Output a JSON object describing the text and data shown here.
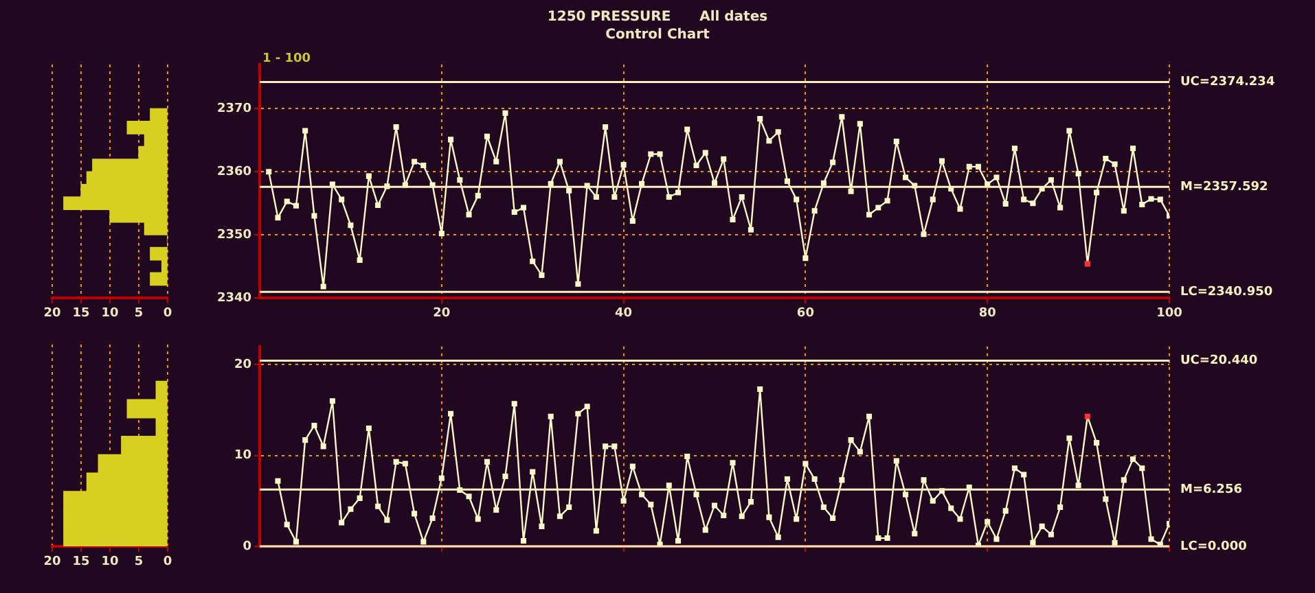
{
  "chart_data": [
    {
      "type": "histogram",
      "orientation": "horizontal",
      "bins": [
        2342,
        2344,
        2346,
        2348,
        2350,
        2352,
        2354,
        2356,
        2358,
        2360,
        2362,
        2364,
        2366,
        2368,
        2370
      ],
      "values": [
        3,
        1,
        3,
        0,
        4,
        10,
        18,
        15,
        14,
        13,
        5,
        4,
        7,
        3
      ],
      "color": "#d8d020",
      "xlim": [
        20,
        0
      ],
      "xticks": [
        20,
        15,
        10,
        5,
        0
      ],
      "ylim": [
        2340,
        2377
      ],
      "grid": "x",
      "tick_labels": "x"
    },
    {
      "type": "line",
      "title": "1250 PRESSURE      All dates",
      "subtitle": "Control Chart",
      "annotations": [
        "1 - 100"
      ],
      "xlim": [
        0,
        100
      ],
      "xticks": [
        20,
        40,
        60,
        80,
        100
      ],
      "ylim": [
        2340,
        2377
      ],
      "yticks": [
        2340,
        2350,
        2360,
        2370
      ],
      "grid": true,
      "marker": "square",
      "x": [
        1,
        2,
        3,
        4,
        5,
        6,
        7,
        8,
        9,
        10,
        11,
        12,
        13,
        14,
        15,
        16,
        17,
        18,
        19,
        20,
        21,
        22,
        23,
        24,
        25,
        26,
        27,
        28,
        29,
        30,
        31,
        32,
        33,
        34,
        35,
        36,
        37,
        38,
        39,
        40,
        41,
        42,
        43,
        44,
        45,
        46,
        47,
        48,
        49,
        50,
        51,
        52,
        53,
        54,
        55,
        56,
        57,
        58,
        59,
        60,
        61,
        62,
        63,
        64,
        65,
        66,
        67,
        68,
        69,
        70,
        71,
        72,
        73,
        74,
        75,
        76,
        77,
        78,
        79,
        80,
        81,
        82,
        83,
        84,
        85,
        86,
        87,
        88,
        89,
        90,
        91,
        92,
        93,
        94,
        95,
        96,
        97,
        98,
        99,
        100
      ],
      "series": [
        {
          "color": "#fff8c8",
          "colors": [
            "#fff8c8",
            "#fff8c8",
            "#fff8c8",
            "#fff8c8",
            "#fff8c8",
            "#fff8c8",
            "#fff8c8",
            "#fff8c8",
            "#fff8c8",
            "#fff8c8",
            "#fff8c8",
            "#fff8c8",
            "#fff8c8",
            "#fff8c8",
            "#fff8c8",
            "#fff8c8",
            "#fff8c8",
            "#fff8c8",
            "#fff8c8",
            "#fff8c8",
            "#fff8c8",
            "#fff8c8",
            "#fff8c8",
            "#fff8c8",
            "#fff8c8",
            "#fff8c8",
            "#fff8c8",
            "#fff8c8",
            "#fff8c8",
            "#fff8c8",
            "#fff8c8",
            "#fff8c8",
            "#fff8c8",
            "#fff8c8",
            "#fff8c8",
            "#fff8c8",
            "#fff8c8",
            "#fff8c8",
            "#fff8c8",
            "#fff8c8",
            "#fff8c8",
            "#fff8c8",
            "#fff8c8",
            "#fff8c8",
            "#fff8c8",
            "#fff8c8",
            "#fff8c8",
            "#fff8c8",
            "#fff8c8",
            "#fff8c8",
            "#fff8c8",
            "#fff8c8",
            "#fff8c8",
            "#fff8c8",
            "#fff8c8",
            "#fff8c8",
            "#fff8c8",
            "#fff8c8",
            "#fff8c8",
            "#fff8c8",
            "#fff8c8",
            "#fff8c8",
            "#fff8c8",
            "#fff8c8",
            "#fff8c8",
            "#fff8c8",
            "#fff8c8",
            "#fff8c8",
            "#fff8c8",
            "#fff8c8",
            "#fff8c8",
            "#fff8c8",
            "#fff8c8",
            "#fff8c8",
            "#fff8c8",
            "#fff8c8",
            "#fff8c8",
            "#fff8c8",
            "#fff8c8",
            "#fff8c8",
            "#fff8c8",
            "#fff8c8",
            "#fff8c8",
            "#fff8c8",
            "#fff8c8",
            "#fff8c8",
            "#fff8c8",
            "#fff8c8",
            "#fff8c8",
            "#fff8c8",
            "#ff3030",
            "#fff8c8",
            "#fff8c8",
            "#fff8c8",
            "#fff8c8",
            "#fff8c8",
            "#fff8c8",
            "#fff8c8",
            "#fff8c8",
            "#fff8c8"
          ],
          "values": [
            2360.0,
            2352.7,
            2355.3,
            2354.6,
            2366.5,
            2353.0,
            2341.8,
            2358.0,
            2355.6,
            2351.5,
            2346.0,
            2359.3,
            2354.7,
            2357.7,
            2367.1,
            2357.9,
            2361.6,
            2361.0,
            2357.9,
            2350.2,
            2365.1,
            2358.7,
            2353.2,
            2356.2,
            2365.6,
            2361.6,
            2369.3,
            2353.6,
            2354.3,
            2345.8,
            2343.6,
            2358.1,
            2361.6,
            2357.0,
            2342.2,
            2357.8,
            2356.0,
            2367.1,
            2356.0,
            2361.1,
            2352.2,
            2358.1,
            2362.8,
            2362.8,
            2356.0,
            2356.7,
            2366.7,
            2361.0,
            2363.0,
            2358.2,
            2362.0,
            2352.4,
            2356.0,
            2350.8,
            2368.4,
            2364.9,
            2366.3,
            2358.5,
            2355.6,
            2346.3,
            2353.8,
            2358.2,
            2361.5,
            2368.7,
            2356.9,
            2367.6,
            2353.2,
            2354.3,
            2355.4,
            2364.8,
            2359.1,
            2357.8,
            2350.1,
            2355.6,
            2361.7,
            2357.3,
            2354.1,
            2360.8,
            2360.8,
            2358.0,
            2359.1,
            2354.9,
            2363.7,
            2355.6,
            2355.0,
            2357.3,
            2358.7,
            2354.3,
            2366.5,
            2359.7,
            2345.4,
            2356.7,
            2362.1,
            2361.2,
            2353.8,
            2363.7,
            2354.8,
            2355.7,
            2355.6,
            2353.0
          ]
        }
      ],
      "ref_lines": [
        {
          "axis": "y",
          "value": 2374.234,
          "label": "UC=2374.234",
          "color": "#fff0c0"
        },
        {
          "axis": "y",
          "value": 2357.592,
          "label": "M=2357.592",
          "color": "#fff0c0"
        },
        {
          "axis": "y",
          "value": 2340.95,
          "label": "LC=2340.950",
          "color": "#fff0c0"
        }
      ]
    },
    {
      "type": "histogram",
      "orientation": "horizontal",
      "bins": [
        0,
        2,
        4,
        6,
        8,
        10,
        12,
        14,
        16,
        18
      ],
      "values": [
        18,
        18,
        18,
        14,
        12,
        8,
        2,
        7,
        2
      ],
      "color": "#d8d020",
      "xlim": [
        20,
        0
      ],
      "xticks": [
        20,
        15,
        10,
        5,
        0
      ],
      "ylim": [
        0,
        22
      ],
      "grid": "x",
      "tick_labels": "x"
    },
    {
      "type": "line",
      "xlim": [
        0,
        100
      ],
      "xticks": [
        20,
        40,
        60,
        80,
        100
      ],
      "ylim": [
        0,
        22
      ],
      "yticks": [
        0,
        10,
        20
      ],
      "grid": true,
      "marker": "square",
      "tick_labels": "y",
      "x": [
        2,
        3,
        4,
        5,
        6,
        7,
        8,
        9,
        10,
        11,
        12,
        13,
        14,
        15,
        16,
        17,
        18,
        19,
        20,
        21,
        22,
        23,
        24,
        25,
        26,
        27,
        28,
        29,
        30,
        31,
        32,
        33,
        34,
        35,
        36,
        37,
        38,
        39,
        40,
        41,
        42,
        43,
        44,
        45,
        46,
        47,
        48,
        49,
        50,
        51,
        52,
        53,
        54,
        55,
        56,
        57,
        58,
        59,
        60,
        61,
        62,
        63,
        64,
        65,
        66,
        67,
        68,
        69,
        70,
        71,
        72,
        73,
        74,
        75,
        76,
        77,
        78,
        79,
        80,
        81,
        82,
        83,
        84,
        85,
        86,
        87,
        88,
        89,
        90,
        91,
        92,
        93,
        94,
        95,
        96,
        97,
        98,
        99,
        100
      ],
      "series": [
        {
          "color": "#fff8c8",
          "colors": [
            "#fff8c8",
            "#fff8c8",
            "#fff8c8",
            "#fff8c8",
            "#fff8c8",
            "#fff8c8",
            "#fff8c8",
            "#fff8c8",
            "#fff8c8",
            "#fff8c8",
            "#fff8c8",
            "#fff8c8",
            "#fff8c8",
            "#fff8c8",
            "#fff8c8",
            "#fff8c8",
            "#fff8c8",
            "#fff8c8",
            "#fff8c8",
            "#fff8c8",
            "#fff8c8",
            "#fff8c8",
            "#fff8c8",
            "#fff8c8",
            "#fff8c8",
            "#fff8c8",
            "#fff8c8",
            "#fff8c8",
            "#fff8c8",
            "#fff8c8",
            "#fff8c8",
            "#fff8c8",
            "#fff8c8",
            "#fff8c8",
            "#fff8c8",
            "#fff8c8",
            "#fff8c8",
            "#fff8c8",
            "#fff8c8",
            "#fff8c8",
            "#fff8c8",
            "#fff8c8",
            "#fff8c8",
            "#fff8c8",
            "#fff8c8",
            "#fff8c8",
            "#fff8c8",
            "#fff8c8",
            "#fff8c8",
            "#fff8c8",
            "#fff8c8",
            "#fff8c8",
            "#fff8c8",
            "#fff8c8",
            "#fff8c8",
            "#fff8c8",
            "#fff8c8",
            "#fff8c8",
            "#fff8c8",
            "#fff8c8",
            "#fff8c8",
            "#fff8c8",
            "#fff8c8",
            "#fff8c8",
            "#fff8c8",
            "#fff8c8",
            "#fff8c8",
            "#fff8c8",
            "#fff8c8",
            "#fff8c8",
            "#fff8c8",
            "#fff8c8",
            "#fff8c8",
            "#fff8c8",
            "#fff8c8",
            "#fff8c8",
            "#fff8c8",
            "#fff8c8",
            "#fff8c8",
            "#fff8c8",
            "#fff8c8",
            "#fff8c8",
            "#fff8c8",
            "#fff8c8",
            "#fff8c8",
            "#fff8c8",
            "#fff8c8",
            "#fff8c8",
            "#fff8c8",
            "#ff3030",
            "#fff8c8",
            "#fff8c8",
            "#fff8c8",
            "#fff8c8",
            "#fff8c8",
            "#fff8c8",
            "#fff8c8",
            "#fff8c8",
            "#fff8c8"
          ],
          "values": [
            7.2,
            2.4,
            0.5,
            11.7,
            13.3,
            11.0,
            16.0,
            2.6,
            4.1,
            5.3,
            13.0,
            4.4,
            2.9,
            9.3,
            9.1,
            3.6,
            0.5,
            3.1,
            7.5,
            14.6,
            6.2,
            5.5,
            3.0,
            9.3,
            4.0,
            7.7,
            15.7,
            0.6,
            8.2,
            2.2,
            14.3,
            3.3,
            4.3,
            14.6,
            15.4,
            1.7,
            11.0,
            11.0,
            5.0,
            8.8,
            5.7,
            4.6,
            0.2,
            6.7,
            0.6,
            9.9,
            5.7,
            1.8,
            4.5,
            3.4,
            9.2,
            3.3,
            4.9,
            17.3,
            3.2,
            1.0,
            7.4,
            3.0,
            9.1,
            7.4,
            4.3,
            3.1,
            7.3,
            11.7,
            10.4,
            14.3,
            0.9,
            0.9,
            9.4,
            5.7,
            1.4,
            7.3,
            5.0,
            6.1,
            4.2,
            3.0,
            6.5,
            0.1,
            2.7,
            0.8,
            3.9,
            8.6,
            7.9,
            0.4,
            2.2,
            1.3,
            4.3,
            11.9,
            6.7,
            14.3,
            11.4,
            5.2,
            0.4,
            7.3,
            9.6,
            8.6,
            0.8,
            0.2,
            2.5
          ]
        }
      ],
      "ref_lines": [
        {
          "axis": "y",
          "value": 20.44,
          "label": "UC=20.440",
          "color": "#fff0c0"
        },
        {
          "axis": "y",
          "value": 6.256,
          "label": "M=6.256",
          "color": "#fff0c0"
        },
        {
          "axis": "y",
          "value": 0,
          "label": "LC=0.000",
          "color": "#fff0c0"
        }
      ]
    }
  ]
}
